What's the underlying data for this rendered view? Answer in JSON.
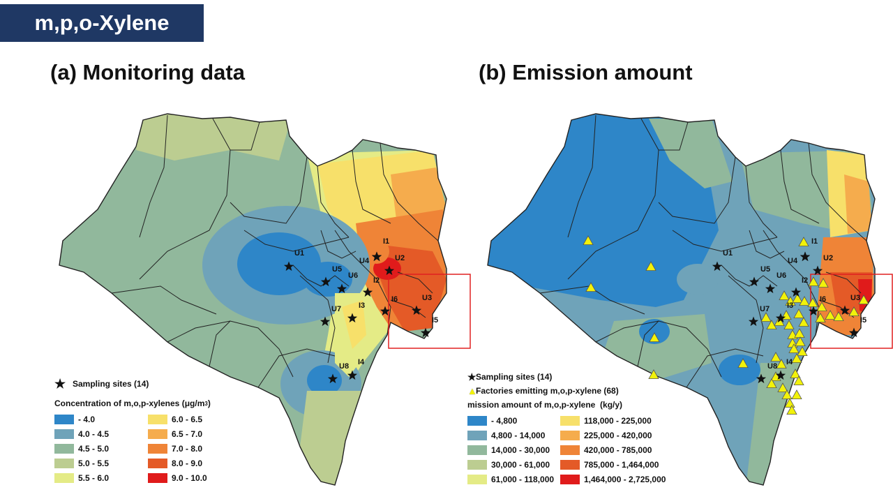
{
  "title": "m,p,o-Xylene",
  "panels": {
    "a": {
      "heading": "(a) Monitoring data",
      "legend": {
        "sampling_label": "Sampling sites (14)",
        "concentration_label": "Concentration of m,o,p-xylenes",
        "unit": "(μg/m",
        "unit_sup": "3",
        "unit_close": ")",
        "classes": [
          {
            "label": "- 4.0",
            "color": "#2e86c8"
          },
          {
            "label": "4.0 - 4.5",
            "color": "#6fa3b9"
          },
          {
            "label": "4.5 - 5.0",
            "color": "#91b89c"
          },
          {
            "label": "5.0 - 5.5",
            "color": "#bccd91"
          },
          {
            "label": "5.5 - 6.0",
            "color": "#e4eb86"
          },
          {
            "label": "6.0 - 6.5",
            "color": "#f7e06a"
          },
          {
            "label": "6.5 - 7.0",
            "color": "#f5ac4d"
          },
          {
            "label": "7.0 - 8.0",
            "color": "#ef8437"
          },
          {
            "label": "8.0 - 9.0",
            "color": "#e45a27"
          },
          {
            "label": "9.0 - 10.0",
            "color": "#e01b1b"
          }
        ]
      }
    },
    "b": {
      "heading": "(b) Emission amount",
      "legend": {
        "sampling_label": "Sampling sites (14)",
        "factories_label": "Factories emitting m,o,p-xylene (68)",
        "emission_label": "mission amount of m,o,p-xylene",
        "unit": "(kg/y)",
        "classes": [
          {
            "label": "- 4,800",
            "color": "#2e86c8"
          },
          {
            "label": "4,800 - 14,000",
            "color": "#6fa3b9"
          },
          {
            "label": "14,000 - 30,000",
            "color": "#91b89c"
          },
          {
            "label": "30,000 - 61,000",
            "color": "#bccd91"
          },
          {
            "label": "61,000 - 118,000",
            "color": "#e4eb86"
          },
          {
            "label": "118,000 - 225,000",
            "color": "#f7e06a"
          },
          {
            "label": "225,000 - 420,000",
            "color": "#f5ac4d"
          },
          {
            "label": "420,000 - 785,000",
            "color": "#ef8437"
          },
          {
            "label": "785,000 - 1,464,000",
            "color": "#e45a27"
          },
          {
            "label": "1,464,000 - 2,725,000",
            "color": "#e01b1b"
          }
        ]
      }
    }
  },
  "site_labels": [
    "U1",
    "U5",
    "U6",
    "U4",
    "U2",
    "I1",
    "I2",
    "I3",
    "U7",
    "I6",
    "U3",
    "I5",
    "U8",
    "I4"
  ],
  "colors": {
    "title_bg": "#1f3864",
    "border_lines": "#222222",
    "highlight_box": "#e02020",
    "factory_marker": "#f2f20a"
  }
}
